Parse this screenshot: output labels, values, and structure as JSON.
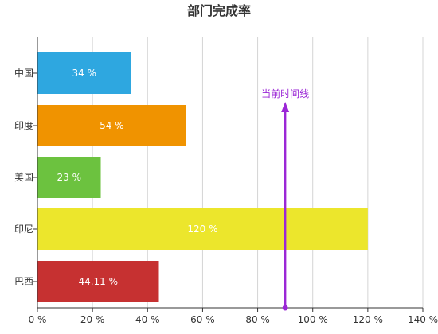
{
  "chart_data": {
    "type": "bar",
    "orientation": "horizontal",
    "title": "部门完成率",
    "categories": [
      "中国",
      "印度",
      "美国",
      "印尼",
      "巴西"
    ],
    "values": [
      34,
      54,
      23,
      120,
      44.11
    ],
    "value_labels": [
      "34 %",
      "54 %",
      "23 %",
      "120 %",
      "44.11 %"
    ],
    "bar_colors": [
      "#2ea7e0",
      "#f09300",
      "#6cc23f",
      "#ece62c",
      "#c63131"
    ],
    "xlim": [
      0,
      140
    ],
    "x_ticks": [
      0,
      20,
      40,
      60,
      80,
      100,
      120,
      140
    ],
    "x_tick_labels": [
      "0 %",
      "20 %",
      "40 %",
      "60 %",
      "80 %",
      "100 %",
      "120 %",
      "140 %"
    ],
    "grid": "vertical",
    "marker": {
      "label": "当前时间线",
      "value": 90,
      "color": "#9b27d6"
    }
  }
}
